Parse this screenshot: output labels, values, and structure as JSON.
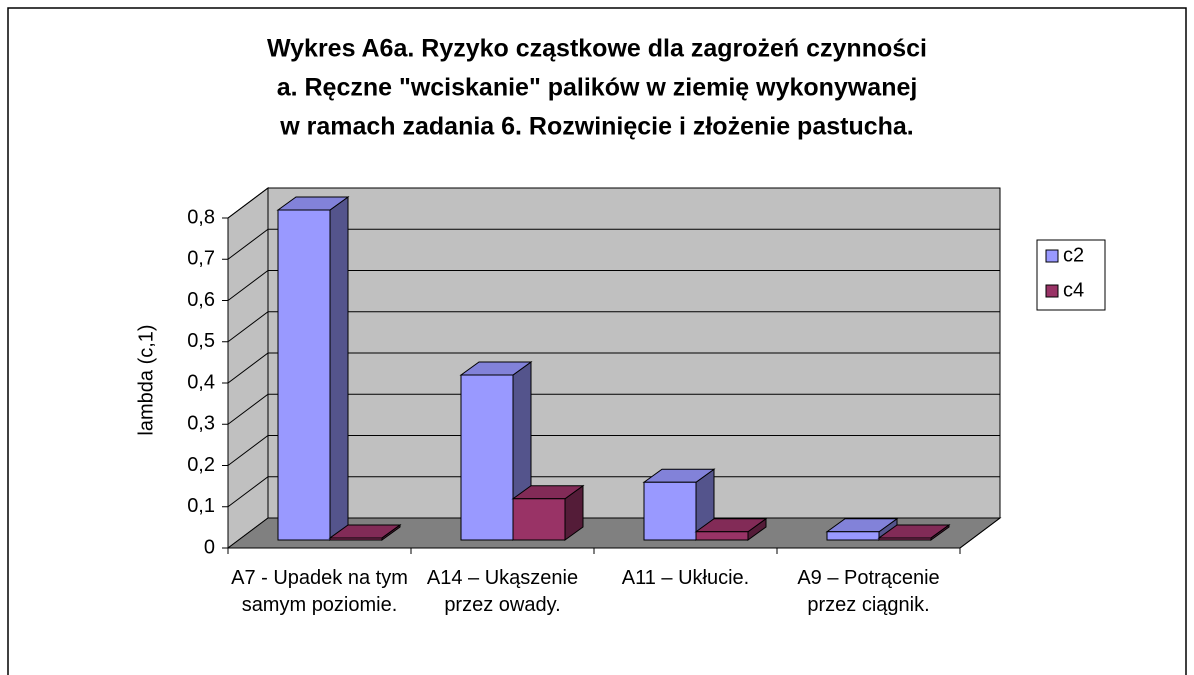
{
  "chart_data": {
    "type": "bar3d",
    "title": [
      "Wykres A6a. Ryzyko cząstkowe dla zagrożeń czynności",
      "a. Ręczne \"wciskanie\" palików w ziemię wykonywanej",
      "w ramach zadania 6. Rozwinięcie i złożenie pastucha."
    ],
    "y_label": "lambda (c,1)",
    "categories": [
      "A7 - Upadek na tym samym poziomie.",
      "A14 – Ukąszenie przez owady.",
      "A11 – Ukłucie.",
      "A9 – Potrącenie przez ciągnik."
    ],
    "series": [
      {
        "name": "c2",
        "color": "#9999ff",
        "values": [
          0.8,
          0.4,
          0.14,
          0.02
        ]
      },
      {
        "name": "c4",
        "color": "#993366",
        "values": [
          0.005,
          0.1,
          0.02,
          0.005
        ]
      }
    ],
    "ylim": [
      0,
      0.8
    ],
    "yticks": [
      0,
      {
        "value": 0.1,
        "label": "0,1"
      },
      {
        "value": 0.2,
        "label": "0,2"
      },
      {
        "value": 0.3,
        "label": "0,3"
      },
      {
        "value": 0.4,
        "label": "0,4"
      },
      {
        "value": 0.5,
        "label": "0,5"
      },
      {
        "value": 0.6,
        "label": "0,6"
      },
      {
        "value": 0.7,
        "label": "0,7"
      },
      {
        "value": 0.8,
        "label": "0,8"
      }
    ],
    "grid": true,
    "legend": "right"
  }
}
